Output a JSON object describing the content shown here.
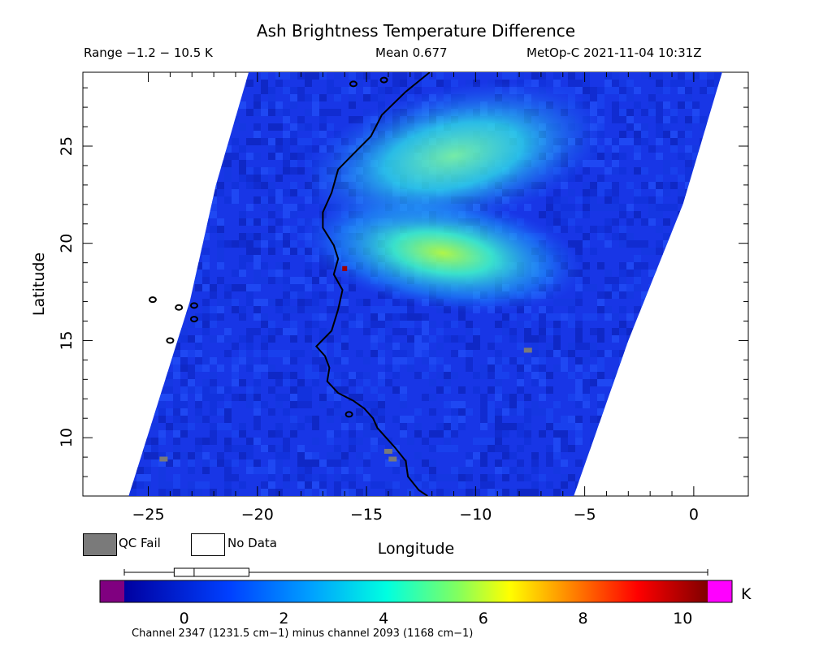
{
  "header": {
    "title": "Ash Brightness Temperature Difference",
    "range_text": "Range −1.2 − 10.5 K",
    "mean_text": "Mean 0.677",
    "satellite_text": "MetOp-C 2021-11-04 10:31Z"
  },
  "legend": {
    "qc_fail_label": "QC Fail",
    "no_data_label": "No Data",
    "qc_fail_color": "#7a7a7a",
    "no_data_color": "#ffffff"
  },
  "colorbar": {
    "unit": "K",
    "ticks": [
      0,
      2,
      4,
      6,
      8,
      10
    ],
    "min": -1.2,
    "max": 10.5,
    "boxplot": {
      "whisker_low": -1.2,
      "q1": -0.2,
      "median": 0.2,
      "q3": 1.3,
      "whisker_high": 10.5
    },
    "under_color": "#800080",
    "over_color": "#ff00ff",
    "footnote": "Channel 2347 (1231.5 cm−1) minus channel 2093 (1168 cm−1)"
  },
  "chart_data": {
    "type": "heatmap",
    "title": "Ash Brightness Temperature Difference",
    "xlabel": "Longitude",
    "ylabel": "Latitude",
    "xlim": [
      -28,
      2.5
    ],
    "ylim": [
      7,
      28.8
    ],
    "xticks": [
      -25,
      -20,
      -15,
      -10,
      -5,
      0
    ],
    "yticks": [
      10,
      15,
      20,
      25
    ],
    "value_unit": "K",
    "value_range": [
      -1.2,
      10.5
    ],
    "mean": 0.677,
    "swath_edges": {
      "west": [
        [
          -25.9,
          7
        ],
        [
          -23.1,
          17
        ],
        [
          -21.9,
          23
        ],
        [
          -20.4,
          28.8
        ]
      ],
      "east": [
        [
          -5.5,
          7
        ],
        [
          -3.0,
          15
        ],
        [
          -0.5,
          22
        ],
        [
          1.3,
          28.8
        ]
      ]
    },
    "ash_features": [
      {
        "name": "main plume",
        "center": [
          -11.5,
          19.5
        ],
        "peak_value": 5.8
      },
      {
        "name": "northern plume",
        "center": [
          -11.0,
          24.5
        ],
        "peak_value": 4.5
      },
      {
        "name": "hot pixel",
        "center": [
          -16.0,
          18.7
        ],
        "peak_value": 9.5
      }
    ],
    "qc_fail_pixels": [
      [
        -7.6,
        14.5
      ],
      [
        -24.3,
        8.9
      ],
      [
        -14.0,
        9.3
      ],
      [
        -13.8,
        8.9
      ]
    ]
  }
}
